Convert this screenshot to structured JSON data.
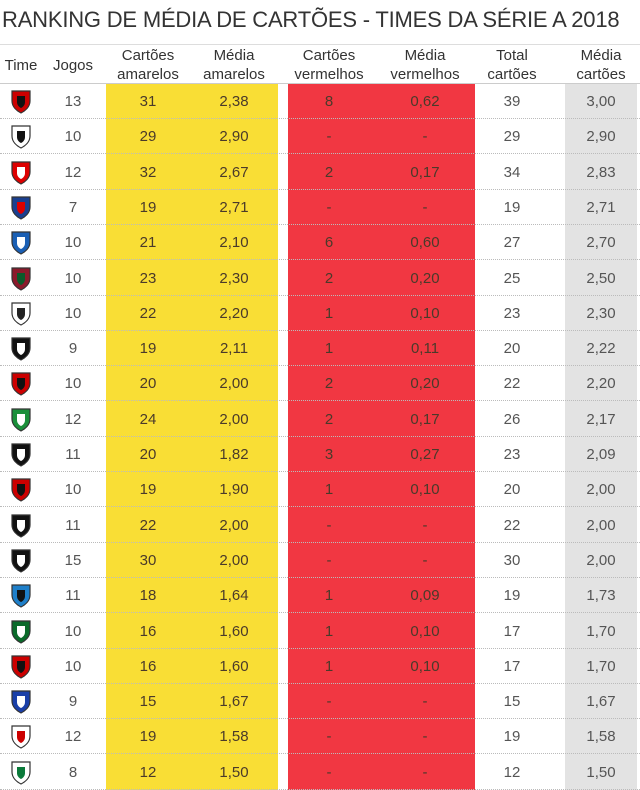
{
  "title": "RANKING DE MÉDIA DE CARTÕES - TIMES DA SÉRIE A 2018",
  "colors": {
    "yellow": "#f9de35",
    "red": "#f13742",
    "grey": "#e3e3e3"
  },
  "headers": {
    "time": "Time",
    "jogos": "Jogos",
    "ca": "Cartões amarelos",
    "ma": "Média amarelos",
    "cv": "Cartões vermelhos",
    "mv": "Média vermelhos",
    "tc": "Total cartões",
    "mc": "Média cartões"
  },
  "rows": [
    {
      "crest": "vitoria-crest",
      "j": "13",
      "ca": "31",
      "ma": "2,38",
      "cv": "8",
      "mv": "0,62",
      "tc": "39",
      "mc": "3,00"
    },
    {
      "crest": "santos-crest",
      "j": "10",
      "ca": "29",
      "ma": "2,90",
      "cv": "-",
      "mv": "-",
      "tc": "29",
      "mc": "2,90"
    },
    {
      "crest": "internacional-crest",
      "j": "12",
      "ca": "32",
      "ma": "2,67",
      "cv": "2",
      "mv": "0,17",
      "tc": "34",
      "mc": "2,83"
    },
    {
      "crest": "parana-crest",
      "j": "7",
      "ca": "19",
      "ma": "2,71",
      "cv": "-",
      "mv": "-",
      "tc": "19",
      "mc": "2,71"
    },
    {
      "crest": "bahia-crest",
      "j": "10",
      "ca": "21",
      "ma": "2,10",
      "cv": "6",
      "mv": "0,60",
      "tc": "27",
      "mc": "2,70"
    },
    {
      "crest": "fluminense-crest",
      "j": "10",
      "ca": "23",
      "ma": "2,30",
      "cv": "2",
      "mv": "0,20",
      "tc": "25",
      "mc": "2,50"
    },
    {
      "crest": "corinthians-crest",
      "j": "10",
      "ca": "22",
      "ma": "2,20",
      "cv": "1",
      "mv": "0,10",
      "tc": "23",
      "mc": "2,30"
    },
    {
      "crest": "botafogo-crest",
      "j": "9",
      "ca": "19",
      "ma": "2,11",
      "cv": "1",
      "mv": "0,11",
      "tc": "20",
      "mc": "2,22"
    },
    {
      "crest": "atletico-pr-crest",
      "j": "10",
      "ca": "20",
      "ma": "2,00",
      "cv": "2",
      "mv": "0,20",
      "tc": "22",
      "mc": "2,20"
    },
    {
      "crest": "chapecoense-crest",
      "j": "12",
      "ca": "24",
      "ma": "2,00",
      "cv": "2",
      "mv": "0,17",
      "tc": "26",
      "mc": "2,17"
    },
    {
      "crest": "vasco-crest",
      "j": "11",
      "ca": "20",
      "ma": "1,82",
      "cv": "3",
      "mv": "0,27",
      "tc": "23",
      "mc": "2,09"
    },
    {
      "crest": "flamengo-crest",
      "j": "10",
      "ca": "19",
      "ma": "1,90",
      "cv": "1",
      "mv": "0,10",
      "tc": "20",
      "mc": "2,00"
    },
    {
      "crest": "atletico-mg-crest",
      "j": "11",
      "ca": "22",
      "ma": "2,00",
      "cv": "-",
      "mv": "-",
      "tc": "22",
      "mc": "2,00"
    },
    {
      "crest": "ceara-crest",
      "j": "15",
      "ca": "30",
      "ma": "2,00",
      "cv": "-",
      "mv": "-",
      "tc": "30",
      "mc": "2,00"
    },
    {
      "crest": "gremio-crest",
      "j": "11",
      "ca": "18",
      "ma": "1,64",
      "cv": "1",
      "mv": "0,09",
      "tc": "19",
      "mc": "1,73"
    },
    {
      "crest": "palmeiras-crest",
      "j": "10",
      "ca": "16",
      "ma": "1,60",
      "cv": "1",
      "mv": "0,10",
      "tc": "17",
      "mc": "1,70"
    },
    {
      "crest": "sport-crest",
      "j": "10",
      "ca": "16",
      "ma": "1,60",
      "cv": "1",
      "mv": "0,10",
      "tc": "17",
      "mc": "1,70"
    },
    {
      "crest": "cruzeiro-crest",
      "j": "9",
      "ca": "15",
      "ma": "1,67",
      "cv": "-",
      "mv": "-",
      "tc": "15",
      "mc": "1,67"
    },
    {
      "crest": "sao-paulo-crest",
      "j": "12",
      "ca": "19",
      "ma": "1,58",
      "cv": "-",
      "mv": "-",
      "tc": "19",
      "mc": "1,58"
    },
    {
      "crest": "america-mg-crest",
      "j": "8",
      "ca": "12",
      "ma": "1,50",
      "cv": "-",
      "mv": "-",
      "tc": "12",
      "mc": "1,50"
    }
  ]
}
